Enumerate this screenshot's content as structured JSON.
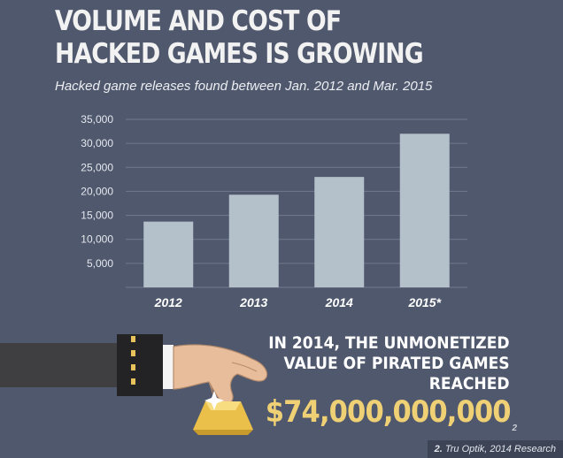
{
  "header": {
    "title_line1": "VOLUME AND COST OF",
    "title_line2": "HACKED GAMES IS GROWING",
    "subtitle": "Hacked game releases found between Jan. 2012 and Mar. 2015"
  },
  "chart_data": {
    "type": "bar",
    "title": "VOLUME AND COST OF HACKED GAMES IS GROWING",
    "subtitle": "Hacked game releases found between Jan. 2012 and Mar. 2015",
    "categories": [
      "2012",
      "2013",
      "2014",
      "2015*"
    ],
    "values": [
      13700,
      19300,
      23000,
      32000
    ],
    "yticks": [
      5000,
      10000,
      15000,
      20000,
      25000,
      30000,
      35000
    ],
    "ytick_labels": [
      "5,000",
      "10,000",
      "15,000",
      "20,000",
      "25,000",
      "30,000",
      "35,000"
    ],
    "ylim": [
      0,
      35000
    ],
    "xlabel": "",
    "ylabel": "",
    "grid": true,
    "bar_color": "#b4c1cb",
    "grid_color": "#717a8d"
  },
  "callout": {
    "line1": "IN 2014, THE UNMONETIZED",
    "line2": "VALUE OF PIRATED GAMES",
    "line3": "REACHED",
    "amount": "$74,000,000,000",
    "footnote_mark": "2",
    "amount_color": "#f0d074"
  },
  "source": {
    "number": "2.",
    "text": "Tru Optik, 2014 Research"
  },
  "illustration": {
    "icons": [
      "sleeve-icon",
      "hand-icon",
      "gold-bar-icon",
      "sparkle-icon"
    ]
  }
}
